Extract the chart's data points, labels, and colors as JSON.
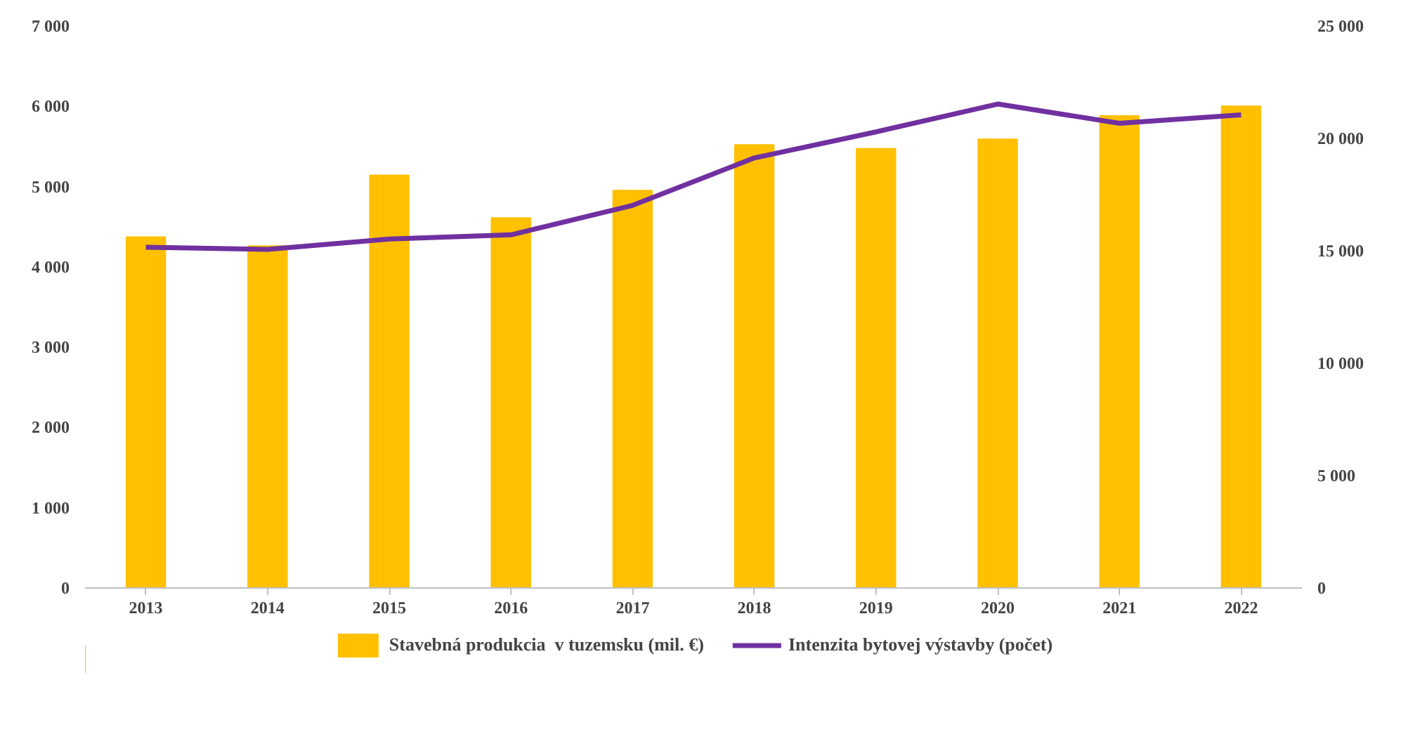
{
  "chart_data": {
    "type": "bar",
    "categories": [
      "2013",
      "2014",
      "2015",
      "2016",
      "2017",
      "2018",
      "2019",
      "2020",
      "2021",
      "2022"
    ],
    "series": [
      {
        "name": "Stavebná produkcia  v tuzemsku (mil. €)",
        "color": "#ffc000",
        "values": [
          4370,
          4260,
          5140,
          4610,
          4950,
          5520,
          5470,
          5590,
          5880,
          6000
        ]
      },
      {
        "name": "Intenzita bytovej výstavby (počet)",
        "type": "line",
        "axis": "y2",
        "color": "#7030a0",
        "values": [
          15160,
          15060,
          15520,
          15710,
          17020,
          19130,
          20290,
          21530,
          20670,
          21050
        ]
      }
    ],
    "ylim": [
      0,
      7000
    ],
    "yticks": [
      {
        "value": 0,
        "label": "0"
      },
      {
        "value": 1000,
        "label": "1 000"
      },
      {
        "value": 2000,
        "label": "2 000"
      },
      {
        "value": 3000,
        "label": "3 000"
      },
      {
        "value": 4000,
        "label": "4 000"
      },
      {
        "value": 5000,
        "label": "5 000"
      },
      {
        "value": 6000,
        "label": "6 000"
      },
      {
        "value": 7000,
        "label": "7 000"
      }
    ],
    "y2lim": [
      0,
      25000
    ],
    "y2ticks": [
      {
        "value": 0,
        "label": "0"
      },
      {
        "value": 5000,
        "label": "5 000"
      },
      {
        "value": 10000,
        "label": "10 000"
      },
      {
        "value": 15000,
        "label": "15 000"
      },
      {
        "value": 20000,
        "label": "20 000"
      },
      {
        "value": 25000,
        "label": "25 000"
      }
    ],
    "grid": false,
    "legend": "bottom",
    "marker": "none",
    "line_style": "solid"
  }
}
